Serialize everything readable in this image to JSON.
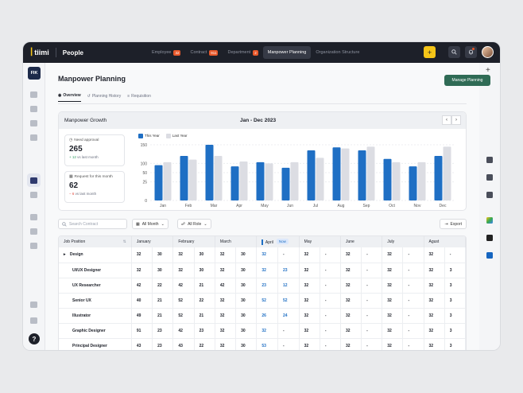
{
  "app": {
    "logo_text": "tiimi",
    "module": "People"
  },
  "nav": [
    {
      "label": "Employee",
      "badge": "32"
    },
    {
      "label": "Contract",
      "badge": "911"
    },
    {
      "label": "Department",
      "badge": "2"
    },
    {
      "label": "Manpower Planning",
      "badge": ""
    },
    {
      "label": "Organization Structure",
      "badge": ""
    }
  ],
  "workspace": {
    "label": "FIK"
  },
  "page": {
    "title": "Manpower Planning",
    "manage_label": "Manage Planning"
  },
  "tabs": [
    "Overview",
    "Planning History",
    "Requisition"
  ],
  "growth": {
    "title": "Manpower Growth",
    "range": "Jan - Dec 2023",
    "stats": [
      {
        "label": "Need approval",
        "value": "265",
        "delta": "+ 12",
        "delta_text": "vs last month"
      },
      {
        "label": "Request for this month",
        "value": "62",
        "delta": "− 6",
        "delta_text": "vs last month"
      }
    ]
  },
  "chart_data": {
    "type": "bar",
    "categories": [
      "Jan",
      "Feb",
      "Mar",
      "Apr",
      "May",
      "Jun",
      "Jul",
      "Aug",
      "Sep",
      "Oct",
      "Nov",
      "Dec"
    ],
    "series": [
      {
        "name": "This Year",
        "values": [
          95,
          120,
          150,
          92,
          103,
          88,
          135,
          143,
          135,
          112,
          92,
          120
        ],
        "color": "#1f6fc4"
      },
      {
        "name": "Last Year",
        "values": [
          103,
          110,
          120,
          105,
          100,
          103,
          115,
          140,
          145,
          103,
          103,
          145
        ],
        "color": "#dcdde3"
      }
    ],
    "ylim": [
      0,
      150
    ],
    "yticks": [
      "0",
      "25",
      "50",
      "100",
      "150"
    ],
    "grid": true,
    "legend": "top-left"
  },
  "filters": {
    "search_placeholder": "Search Contract",
    "month_label": "All Month",
    "role_label": "All Role",
    "export_label": "Export"
  },
  "table": {
    "headers": [
      "Job Position",
      "January",
      "February",
      "March",
      "April",
      "May",
      "June",
      "July",
      "Agust"
    ],
    "now_label": "Now",
    "rows": [
      {
        "position": "Design",
        "top": true,
        "cells": [
          "32",
          "30",
          "32",
          "30",
          "32",
          "30",
          "32",
          "-",
          "32",
          "-",
          "32",
          "-",
          "32",
          "-",
          "32",
          "-"
        ]
      },
      {
        "position": "UI/UX Designer",
        "cells": [
          "32",
          "30",
          "32",
          "30",
          "32",
          "30",
          "32",
          "23",
          "32",
          "-",
          "32",
          "-",
          "32",
          "-",
          "32",
          "3"
        ]
      },
      {
        "position": "UX Researcher",
        "cells": [
          "42",
          "22",
          "42",
          "21",
          "42",
          "30",
          "23",
          "12",
          "32",
          "-",
          "32",
          "-",
          "32",
          "-",
          "32",
          "3"
        ]
      },
      {
        "position": "Senior UX",
        "cells": [
          "40",
          "21",
          "52",
          "22",
          "32",
          "30",
          "52",
          "52",
          "32",
          "-",
          "32",
          "-",
          "32",
          "-",
          "32",
          "3"
        ]
      },
      {
        "position": "Illustrator",
        "cells": [
          "49",
          "21",
          "52",
          "21",
          "32",
          "30",
          "26",
          "24",
          "32",
          "-",
          "32",
          "-",
          "32",
          "-",
          "32",
          "3"
        ]
      },
      {
        "position": "Graphic Designer",
        "cells": [
          "91",
          "23",
          "42",
          "23",
          "32",
          "30",
          "32",
          "-",
          "32",
          "-",
          "32",
          "-",
          "32",
          "-",
          "32",
          "3"
        ]
      },
      {
        "position": "Principal Designer",
        "cells": [
          "43",
          "23",
          "43",
          "22",
          "32",
          "30",
          "53",
          "-",
          "32",
          "-",
          "32",
          "-",
          "32",
          "-",
          "32",
          "3"
        ]
      }
    ]
  }
}
